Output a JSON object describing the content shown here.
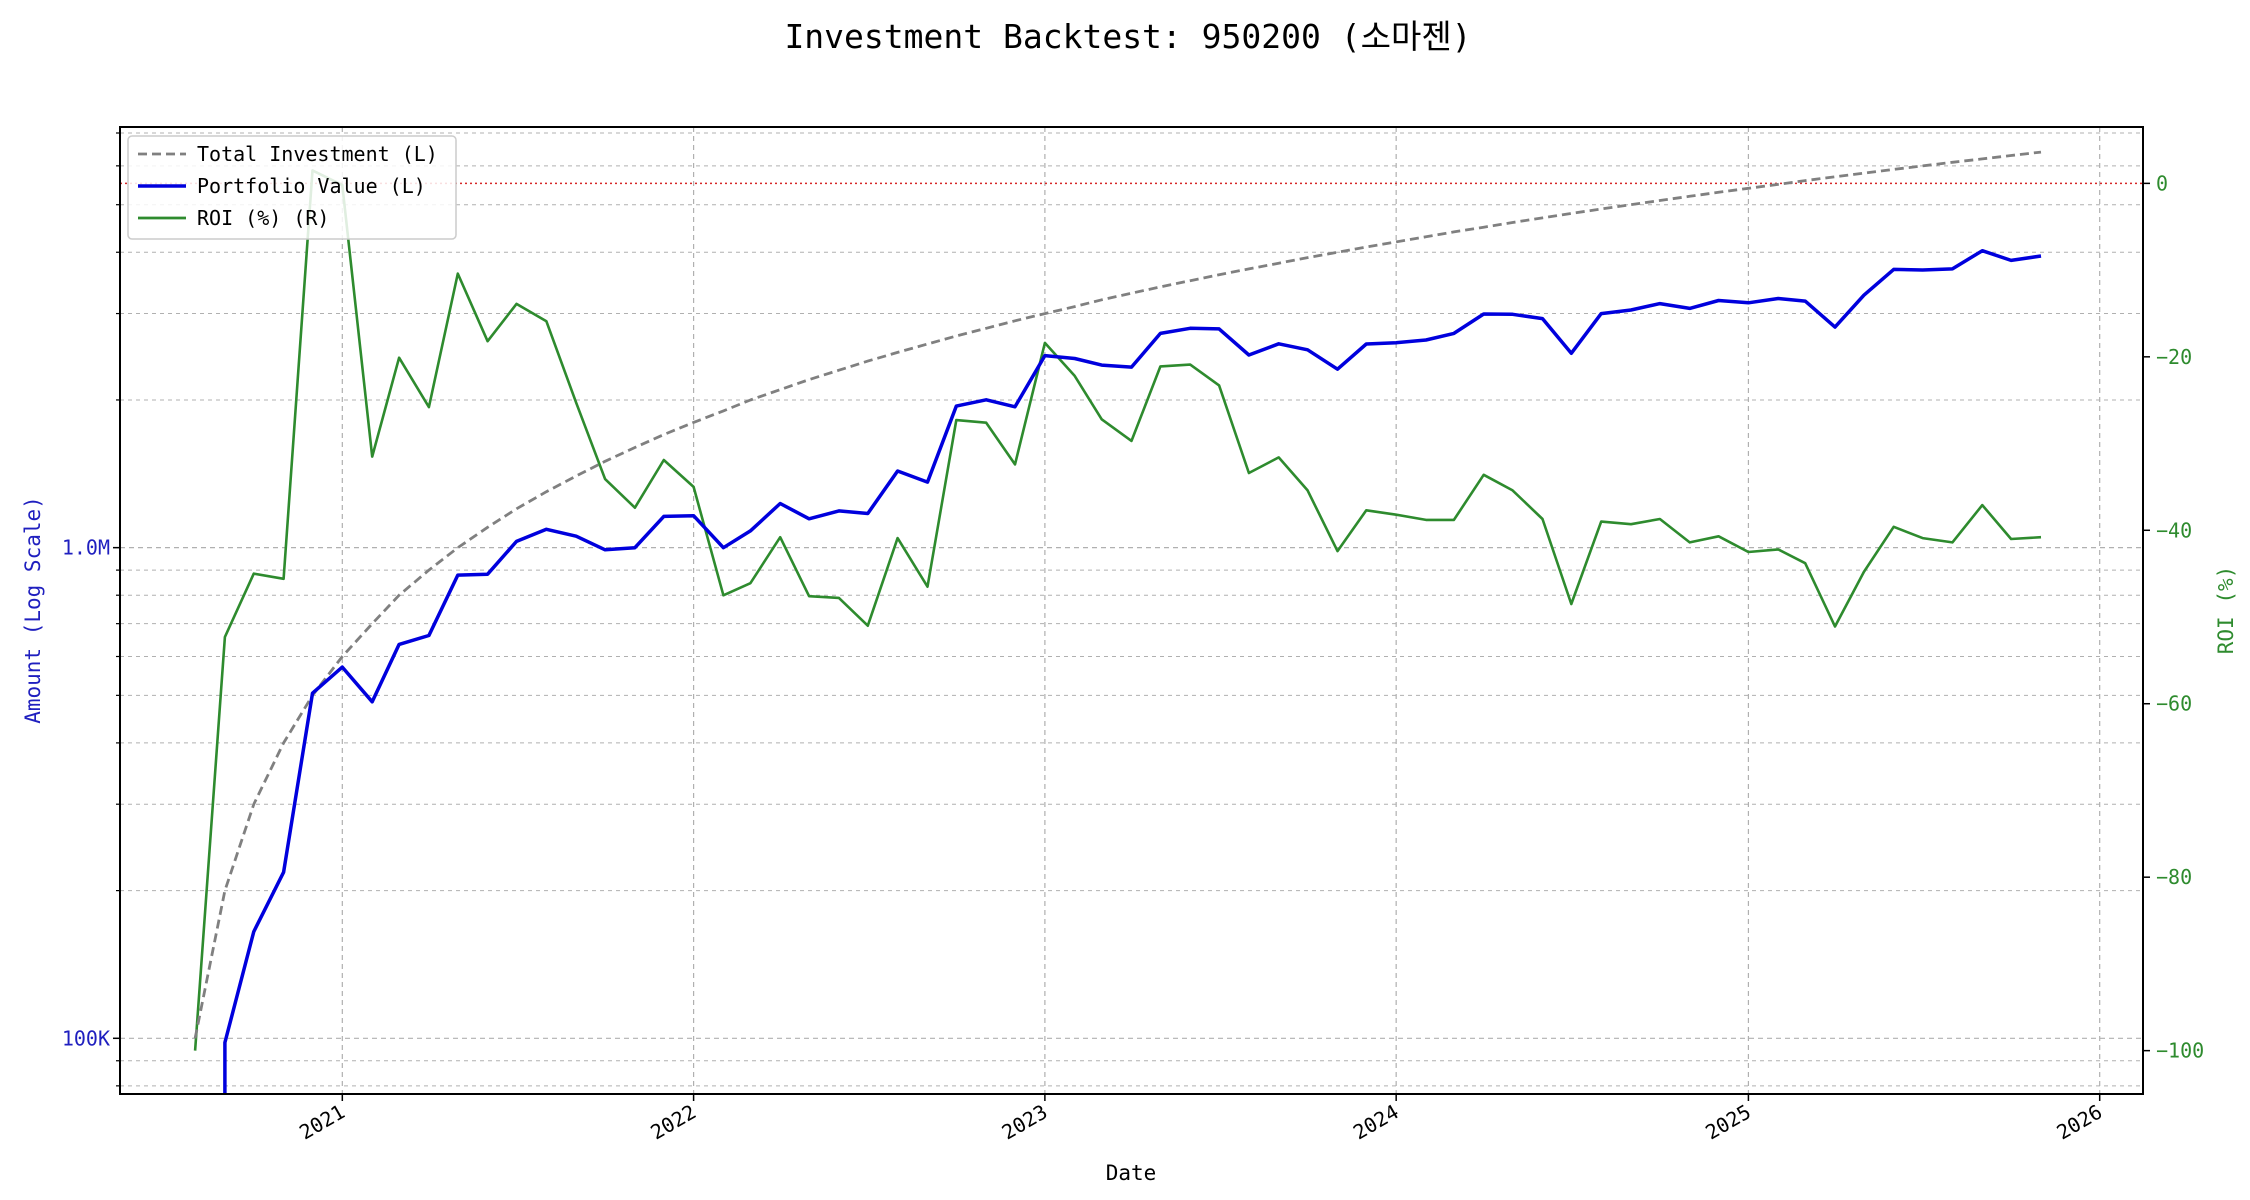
{
  "chart_data": {
    "type": "line",
    "title": "Investment Backtest: 950200 (소마젠)",
    "xlabel": "Date",
    "ylabel_left": "Amount (Log Scale)",
    "ylabel_right": "ROI (%)",
    "y_left_scale": "log",
    "y_left_range": [
      77000,
      7200000
    ],
    "y_right_range": [
      -105,
      6.5
    ],
    "y_left_ticks": [
      {
        "value": 100000,
        "label": "100K"
      },
      {
        "value": 1000000,
        "label": "1.0M"
      }
    ],
    "y_right_ticks": [
      {
        "value": 0,
        "label": "0"
      },
      {
        "value": -20,
        "label": "−20"
      },
      {
        "value": -40,
        "label": "−40"
      },
      {
        "value": -60,
        "label": "−60"
      },
      {
        "value": -80,
        "label": "−80"
      },
      {
        "value": -100,
        "label": "−100"
      }
    ],
    "x_range": [
      "2020-05-15",
      "2026-02-15"
    ],
    "x_ticks": [
      "2021",
      "2022",
      "2023",
      "2024",
      "2025",
      "2026"
    ],
    "grid": true,
    "legend_position": "top-left",
    "reference_line": {
      "axis": "right",
      "value": 0,
      "color": "#d62728",
      "style": "dotted"
    },
    "dates": [
      "2020-08-01",
      "2020-09-01",
      "2020-10-01",
      "2020-11-01",
      "2020-12-01",
      "2021-01-01",
      "2021-02-01",
      "2021-03-01",
      "2021-04-01",
      "2021-05-01",
      "2021-06-01",
      "2021-07-01",
      "2021-08-01",
      "2021-09-01",
      "2021-10-01",
      "2021-11-01",
      "2021-12-01",
      "2022-01-01",
      "2022-02-01",
      "2022-03-01",
      "2022-04-01",
      "2022-05-01",
      "2022-06-01",
      "2022-07-01",
      "2022-08-01",
      "2022-09-01",
      "2022-10-01",
      "2022-11-01",
      "2022-12-01",
      "2023-01-01",
      "2023-02-01",
      "2023-03-01",
      "2023-04-01",
      "2023-05-01",
      "2023-06-01",
      "2023-07-01",
      "2023-08-01",
      "2023-09-01",
      "2023-10-01",
      "2023-11-01",
      "2023-12-01",
      "2024-01-01",
      "2024-02-01",
      "2024-03-01",
      "2024-04-01",
      "2024-05-01",
      "2024-06-01",
      "2024-07-01",
      "2024-08-01",
      "2024-09-01",
      "2024-10-01",
      "2024-11-01",
      "2024-12-01",
      "2025-01-01",
      "2025-02-01",
      "2025-03-01",
      "2025-04-01",
      "2025-05-01",
      "2025-06-01",
      "2025-07-01",
      "2025-08-01",
      "2025-09-01",
      "2025-10-01",
      "2025-11-01"
    ],
    "series": [
      {
        "name": "Total Investment (L)",
        "axis": "left",
        "color": "#808080",
        "style": "dashed",
        "values": [
          100000,
          200000,
          300000,
          400000,
          500000,
          600000,
          700000,
          800000,
          900000,
          1000000,
          1100000,
          1200000,
          1300000,
          1400000,
          1500000,
          1600000,
          1700000,
          1800000,
          1900000,
          2000000,
          2100000,
          2200000,
          2300000,
          2400000,
          2500000,
          2600000,
          2700000,
          2800000,
          2900000,
          3000000,
          3100000,
          3200000,
          3300000,
          3400000,
          3500000,
          3600000,
          3700000,
          3800000,
          3900000,
          4000000,
          4100000,
          4200000,
          4300000,
          4400000,
          4500000,
          4600000,
          4700000,
          4800000,
          4900000,
          5000000,
          5100000,
          5200000,
          5300000,
          5400000,
          5500000,
          5600000,
          5700000,
          5800000,
          5900000,
          6000000,
          6100000,
          6200000,
          6300000,
          6400000
        ]
      },
      {
        "name": "Portfolio Value (L)",
        "axis": "left",
        "color": "#0000dd",
        "style": "solid",
        "values": [
          null,
          98000,
          165000,
          218000,
          505000,
          571000,
          485000,
          635000,
          662000,
          879000,
          883000,
          1030000,
          1090000,
          1055000,
          990000,
          1000000,
          1158000,
          1162000,
          1000000,
          1082000,
          1230000,
          1145000,
          1188000,
          1174000,
          1433000,
          1360000,
          1943000,
          2001000,
          1937000,
          2463000,
          2430000,
          2355000,
          2333000,
          2733000,
          2800000,
          2792000,
          2470000,
          2603000,
          2531000,
          2310000,
          2600000,
          2617000,
          2650000,
          2733000,
          2993000,
          2990000,
          2930000,
          2490000,
          3000000,
          3050000,
          3143000,
          3073000,
          3190000,
          3155000,
          3220000,
          3180000,
          2815000,
          3270000,
          3690000,
          3680000,
          3700000,
          4030000,
          3850000,
          3930000
        ]
      },
      {
        "name": "ROI (%) (R)",
        "axis": "right",
        "color": "#2e8b2e",
        "style": "solid",
        "values": [
          -100,
          -52.3,
          -45,
          -45.6,
          1.5,
          -0.2,
          -31.5,
          -20.1,
          -25.8,
          -10.4,
          -18.2,
          -13.9,
          -15.9,
          -25.3,
          -34.1,
          -37.4,
          -31.9,
          -35,
          -47.5,
          -46.1,
          -40.8,
          -47.6,
          -47.8,
          -51,
          -40.9,
          -46.5,
          -27.3,
          -27.6,
          -32.4,
          -18.4,
          -22.2,
          -27.2,
          -29.7,
          -21.1,
          -20.9,
          -23.3,
          -33.4,
          -31.6,
          -35.4,
          -42.4,
          -37.7,
          -38.2,
          -38.8,
          -38.8,
          -33.6,
          -35.4,
          -38.7,
          -48.5,
          -39,
          -39.3,
          -38.7,
          -41.4,
          -40.7,
          -42.5,
          -42.2,
          -43.8,
          -51.1,
          -44.8,
          -39.6,
          -40.9,
          -41.4,
          -37.1,
          -41,
          -40.8
        ]
      }
    ]
  }
}
